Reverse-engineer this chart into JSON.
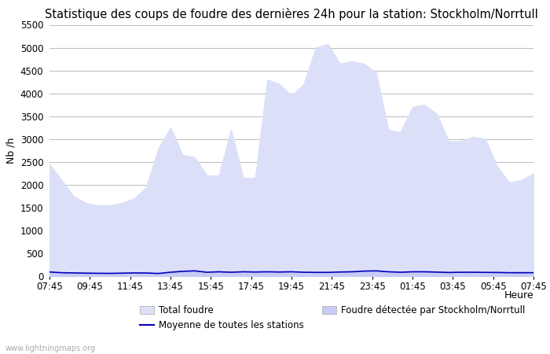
{
  "title": "Statistique des coups de foudre des dernières 24h pour la station: Stockholm/Norrtull",
  "xlabel": "Heure",
  "ylabel": "Nb /h",
  "watermark": "www.lightningmaps.org",
  "x_labels": [
    "07:45",
    "09:45",
    "11:45",
    "13:45",
    "15:45",
    "17:45",
    "19:45",
    "21:45",
    "23:45",
    "01:45",
    "03:45",
    "05:45",
    "07:45"
  ],
  "ylim": [
    0,
    5500
  ],
  "yticks": [
    0,
    500,
    1000,
    1500,
    2000,
    2500,
    3000,
    3500,
    4000,
    4500,
    5000,
    5500
  ],
  "total_foudre_color": "#dcdff8",
  "station_foudre_color": "#c8ccf5",
  "moyenne_color": "#0000bb",
  "bg_color": "#ffffff",
  "grid_color": "#bbbbbb",
  "total_foudre": [
    2450,
    2100,
    1750,
    1600,
    1550,
    1550,
    1600,
    1700,
    1950,
    2800,
    3250,
    2650,
    2600,
    2200,
    2200,
    3200,
    2150,
    2150,
    4300,
    4200,
    3950,
    4200,
    5000,
    5080,
    4650,
    4700,
    4650,
    4450,
    3200,
    3150,
    3700,
    3750,
    3550,
    2950,
    2950,
    3050,
    3000,
    2400,
    2050,
    2100,
    2250
  ],
  "station_foudre": [
    120,
    80,
    80,
    70,
    65,
    60,
    65,
    70,
    70,
    60,
    80,
    100,
    110,
    80,
    90,
    75,
    85,
    80,
    80,
    80,
    75,
    70,
    70,
    70,
    80,
    90,
    100,
    110,
    90,
    80,
    90,
    90,
    80,
    70,
    80,
    80,
    80,
    80,
    70,
    70,
    70
  ],
  "moyenne": [
    90,
    75,
    70,
    65,
    62,
    60,
    65,
    70,
    68,
    58,
    85,
    105,
    115,
    85,
    95,
    85,
    95,
    90,
    95,
    90,
    95,
    85,
    82,
    82,
    90,
    95,
    110,
    115,
    95,
    85,
    95,
    95,
    88,
    80,
    85,
    85,
    82,
    80,
    75,
    75,
    75
  ],
  "legend_total_label": "Total foudre",
  "legend_moyenne_label": "Moyenne de toutes les stations",
  "legend_station_label": "Foudre détectée par Stockholm/Norrtull"
}
